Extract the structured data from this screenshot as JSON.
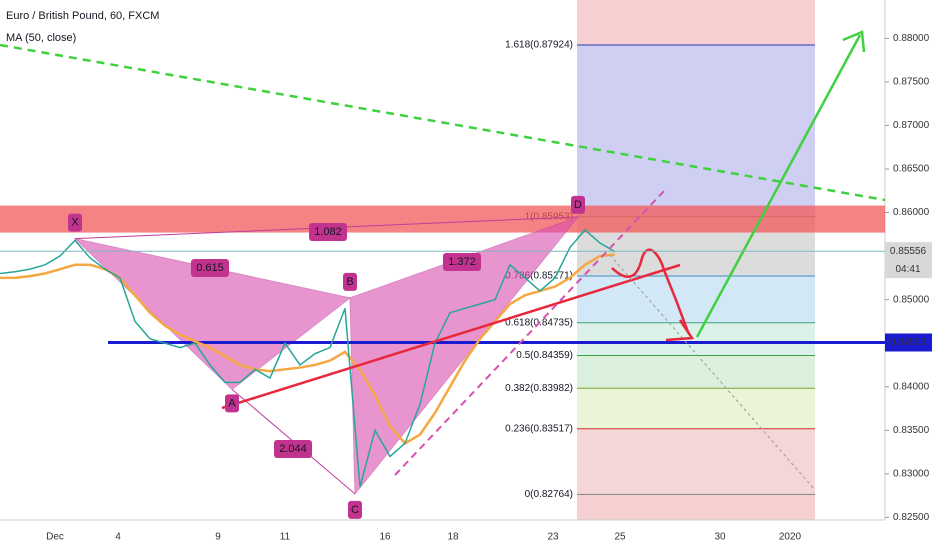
{
  "chart_data": {
    "type": "line",
    "title": "Euro / British Pound, 60, FXCM",
    "values": [
      0.853,
      0.8532,
      0.8535,
      0.854,
      0.855,
      0.8568,
      0.8548,
      0.8535,
      0.8525,
      0.8475,
      0.8455,
      0.845,
      0.8445,
      0.845,
      0.8425,
      0.8405,
      0.8405,
      0.842,
      0.841,
      0.845,
      0.8425,
      0.8438,
      0.8445,
      0.849,
      0.8285,
      0.835,
      0.832,
      0.8335,
      0.838,
      0.845,
      0.8485,
      0.849,
      0.8495,
      0.85,
      0.854,
      0.8525,
      0.851,
      0.8525,
      0.856,
      0.858,
      0.8565,
      0.8555
    ],
    "color": "#26a69a",
    "ma": {
      "name": "MA (50, close)",
      "color": "#f5a742",
      "values": [
        0.8525,
        0.8525,
        0.8527,
        0.853,
        0.8535,
        0.854,
        0.854,
        0.8535,
        0.8525,
        0.8505,
        0.8485,
        0.847,
        0.846,
        0.8452,
        0.8445,
        0.8435,
        0.8425,
        0.842,
        0.8418,
        0.842,
        0.8422,
        0.8425,
        0.843,
        0.844,
        0.842,
        0.839,
        0.8355,
        0.8335,
        0.8345,
        0.837,
        0.84,
        0.843,
        0.8455,
        0.8475,
        0.8495,
        0.8505,
        0.851,
        0.8515,
        0.8525,
        0.854,
        0.855,
        0.8552
      ]
    },
    "ylim": [
      0.8247,
      0.8844
    ],
    "yticks": [
      {
        "value": 0.825,
        "label": "0.82500"
      },
      {
        "value": 0.83,
        "label": "0.83000"
      },
      {
        "value": 0.835,
        "label": "0.83500"
      },
      {
        "value": 0.84,
        "label": "0.84000"
      },
      {
        "value": 0.845,
        "label": "0.84500"
      },
      {
        "value": 0.85,
        "label": "0.85000"
      },
      {
        "value": 0.855,
        "label": "0.85500"
      },
      {
        "value": 0.86,
        "label": "0.86000"
      },
      {
        "value": 0.865,
        "label": "0.86500"
      },
      {
        "value": 0.87,
        "label": "0.87000"
      },
      {
        "value": 0.875,
        "label": "0.87500"
      },
      {
        "value": 0.88,
        "label": "0.88000"
      }
    ],
    "date_labels": [
      "Dec",
      "4",
      "9",
      "11",
      "16",
      "18",
      "23",
      "25",
      "30",
      "2020"
    ],
    "fib": [
      {
        "value": 0.87924,
        "label": "1.618(0.87924)"
      },
      {
        "value": 0.85953,
        "label": "1(0.85953)"
      },
      {
        "value": 0.85271,
        "label": "0.786(0.85271)"
      },
      {
        "value": 0.84735,
        "label": "0.618(0.84735)"
      },
      {
        "value": 0.84359,
        "label": "0.5(0.84359)"
      },
      {
        "value": 0.83982,
        "label": "0.382(0.83982)"
      },
      {
        "value": 0.83517,
        "label": "0.236(0.83517)"
      },
      {
        "value": 0.82764,
        "label": "0(0.82764)"
      }
    ],
    "pattern": [
      {
        "label": "X",
        "value": 0.857
      },
      {
        "label": "A",
        "value": 0.8397
      },
      {
        "label": "B",
        "value": 0.8502
      },
      {
        "label": "C",
        "value": 0.8277
      },
      {
        "label": "D",
        "value": 0.8595
      }
    ],
    "ratios": [
      "0.615",
      "1.082",
      "1.372",
      "2.044"
    ],
    "zone": [
      0.8577,
      0.8608
    ],
    "current_price": 0.85556,
    "countdown": "04:41",
    "support": 0.84508
  }
}
